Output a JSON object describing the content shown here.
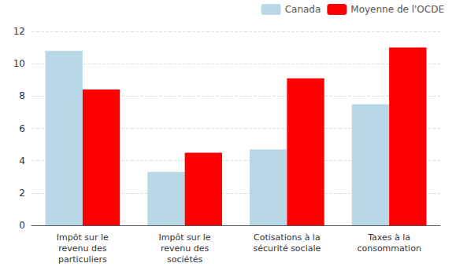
{
  "chart_data": {
    "type": "bar",
    "categories": [
      "Impôt sur le\nrevenu des\nparticuliers",
      "Impôt sur le\nrevenu des\nsociétés",
      "Cotisations à la\nsécurité sociale",
      "Taxes à la\nconsommation"
    ],
    "series": [
      {
        "name": "Canada",
        "color": "#b8d8e8",
        "values": [
          10.8,
          3.3,
          4.7,
          7.5
        ]
      },
      {
        "name": "Moyenne de l'OCDE",
        "color": "#ff0000",
        "values": [
          8.4,
          4.5,
          9.1,
          11.0
        ]
      }
    ],
    "ylim": [
      0,
      12
    ],
    "yticks": [
      0,
      2,
      4,
      6,
      8,
      10,
      12
    ],
    "grid": true,
    "legend": "upper right"
  }
}
